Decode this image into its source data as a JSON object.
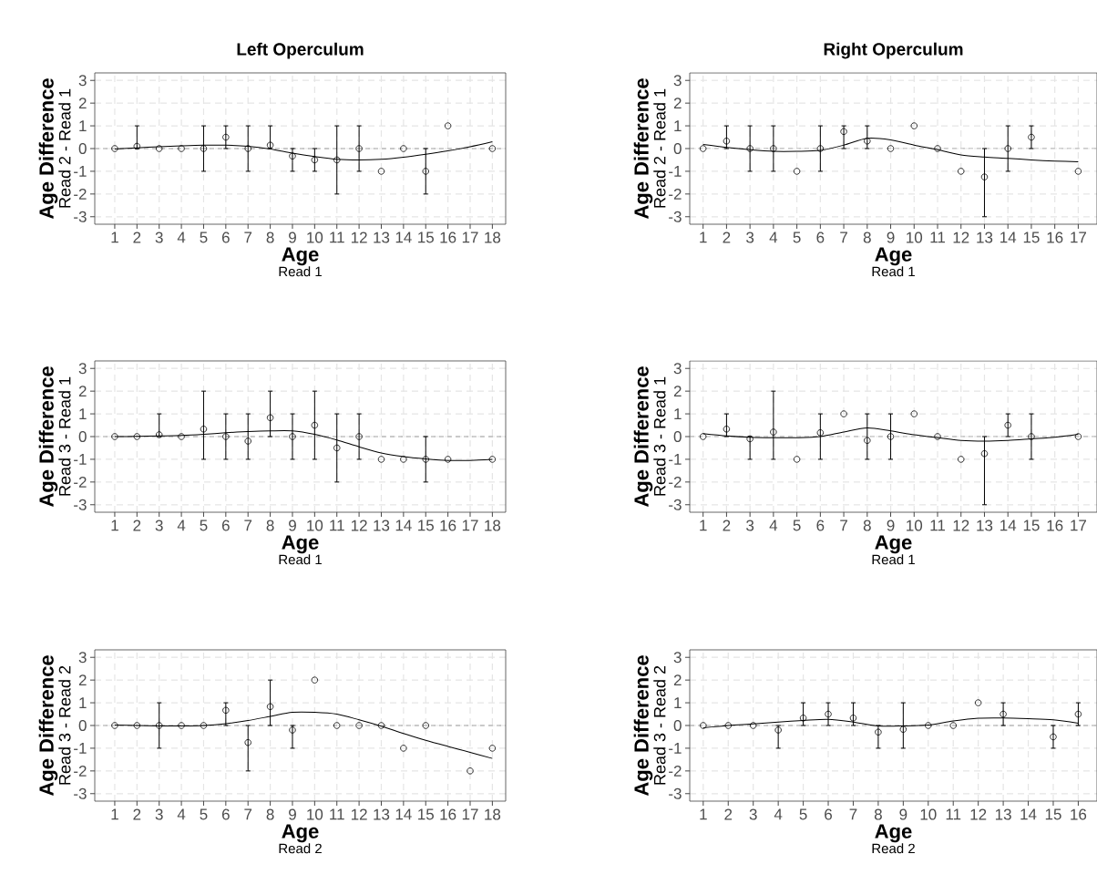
{
  "chart_data": [
    {
      "type": "scatter",
      "title": "Left Operculum",
      "xlabel": "Age",
      "ylabel": "Age Difference",
      "annotations": [
        "Read 1",
        "Read 2 - Read 1"
      ],
      "xlim": [
        0.1,
        18.6
      ],
      "xticks": [
        1,
        2,
        3,
        4,
        5,
        6,
        7,
        8,
        9,
        10,
        11,
        12,
        13,
        14,
        15,
        16,
        17,
        18
      ],
      "ylim": [
        -3.33,
        3.33
      ],
      "yticks": [
        -3,
        -2,
        -1,
        0,
        1,
        2,
        3
      ],
      "grid": true,
      "marker": "circle",
      "ref_lines": [
        {
          "axis": "y",
          "value": 0,
          "color": "#8c8c8c",
          "line_style": "dashed"
        }
      ],
      "series": [
        {
          "color": "#000000",
          "x": [
            1,
            2,
            3,
            4,
            5,
            6,
            7,
            8,
            9,
            10,
            11,
            12,
            13,
            14,
            15,
            16,
            18
          ],
          "values": [
            0,
            0.1,
            0,
            0,
            0,
            0.5,
            0,
            0.15,
            -0.33,
            -0.5,
            -0.5,
            0,
            -1,
            0,
            -1,
            1,
            0
          ],
          "errors": [
            null,
            [
              0,
              1
            ],
            null,
            null,
            [
              -1,
              1
            ],
            [
              0,
              1
            ],
            [
              -1,
              1
            ],
            [
              0,
              1
            ],
            [
              -1,
              0
            ],
            [
              -1,
              0
            ],
            [
              -2,
              1
            ],
            [
              -1,
              1
            ],
            null,
            null,
            [
              -2,
              0
            ],
            null,
            null
          ]
        },
        {
          "type": "line",
          "marker": "none",
          "color": "#000000",
          "x": [
            1,
            2,
            3,
            4,
            5,
            6,
            7,
            8,
            9,
            10,
            11,
            12,
            13,
            14,
            15,
            16,
            17,
            18
          ],
          "values": [
            -0.02,
            0.03,
            0.08,
            0.12,
            0.15,
            0.15,
            0.1,
            -0.02,
            -0.2,
            -0.35,
            -0.47,
            -0.5,
            -0.47,
            -0.38,
            -0.25,
            -0.1,
            0.08,
            0.3
          ]
        }
      ]
    },
    {
      "type": "scatter",
      "title": "Right Operculum",
      "xlabel": "Age",
      "ylabel": "Age Difference",
      "annotations": [
        "Read 1",
        "Read 2 - Read 1"
      ],
      "xlim": [
        0.43,
        17.8
      ],
      "xticks": [
        1,
        2,
        3,
        4,
        5,
        6,
        7,
        8,
        9,
        10,
        11,
        12,
        13,
        14,
        15,
        16,
        17
      ],
      "ylim": [
        -3.33,
        3.33
      ],
      "yticks": [
        -3,
        -2,
        -1,
        0,
        1,
        2,
        3
      ],
      "grid": true,
      "marker": "circle",
      "ref_lines": [
        {
          "axis": "y",
          "value": 0,
          "color": "#8c8c8c",
          "line_style": "dashed"
        }
      ],
      "series": [
        {
          "color": "#000000",
          "x": [
            1,
            2,
            3,
            4,
            5,
            6,
            7,
            8,
            9,
            10,
            11,
            12,
            13,
            14,
            15,
            17
          ],
          "values": [
            0,
            0.33,
            0,
            0,
            -1,
            0,
            0.75,
            0.33,
            0,
            1,
            0,
            -1,
            -1.25,
            0,
            0.5,
            -1
          ],
          "errors": [
            null,
            [
              0,
              1
            ],
            [
              -1,
              1
            ],
            [
              -1,
              1
            ],
            null,
            [
              -1,
              1
            ],
            [
              0,
              1
            ],
            [
              0,
              1
            ],
            null,
            null,
            null,
            null,
            [
              -3,
              0
            ],
            [
              -1,
              1
            ],
            [
              0,
              1
            ],
            null
          ]
        },
        {
          "type": "line",
          "marker": "none",
          "color": "#000000",
          "x": [
            1,
            2,
            3,
            4,
            5,
            6,
            7,
            8,
            9,
            10,
            11,
            12,
            13,
            14,
            15,
            16,
            17
          ],
          "values": [
            0.18,
            0.05,
            -0.05,
            -0.12,
            -0.12,
            -0.08,
            0.15,
            0.45,
            0.38,
            0.15,
            -0.05,
            -0.28,
            -0.37,
            -0.43,
            -0.5,
            -0.55,
            -0.58
          ]
        }
      ]
    },
    {
      "type": "scatter",
      "xlabel": "Age",
      "ylabel": "Age Difference",
      "annotations": [
        "Read 1",
        "Read 3 - Read 1"
      ],
      "xlim": [
        0.1,
        18.6
      ],
      "xticks": [
        1,
        2,
        3,
        4,
        5,
        6,
        7,
        8,
        9,
        10,
        11,
        12,
        13,
        14,
        15,
        16,
        17,
        18
      ],
      "ylim": [
        -3.33,
        3.33
      ],
      "yticks": [
        -3,
        -2,
        -1,
        0,
        1,
        2,
        3
      ],
      "grid": true,
      "marker": "circle",
      "ref_lines": [
        {
          "axis": "y",
          "value": 0,
          "color": "#8c8c8c",
          "line_style": "dashed"
        }
      ],
      "series": [
        {
          "color": "#000000",
          "x": [
            1,
            2,
            3,
            4,
            5,
            6,
            7,
            8,
            9,
            10,
            11,
            12,
            13,
            14,
            15,
            16,
            18
          ],
          "values": [
            0,
            0,
            0.08,
            0,
            0.33,
            0,
            -0.2,
            0.83,
            0,
            0.5,
            -0.5,
            0,
            -1,
            -1,
            -1,
            -1,
            -1
          ],
          "errors": [
            null,
            null,
            [
              0,
              1
            ],
            null,
            [
              -1,
              2
            ],
            [
              -1,
              1
            ],
            [
              -1,
              1
            ],
            [
              0,
              2
            ],
            [
              -1,
              1
            ],
            [
              -1,
              2
            ],
            [
              -2,
              1
            ],
            [
              -1,
              1
            ],
            null,
            null,
            [
              -2,
              0
            ],
            null,
            null
          ]
        },
        {
          "type": "line",
          "marker": "none",
          "color": "#000000",
          "x": [
            1,
            2,
            3,
            4,
            5,
            6,
            7,
            8,
            9,
            10,
            11,
            12,
            13,
            14,
            15,
            16,
            17,
            18
          ],
          "values": [
            0,
            0.01,
            0.03,
            0.05,
            0.1,
            0.17,
            0.22,
            0.25,
            0.25,
            0.1,
            -0.15,
            -0.45,
            -0.72,
            -0.88,
            -0.98,
            -1.05,
            -1.05,
            -1.0
          ]
        }
      ]
    },
    {
      "type": "scatter",
      "xlabel": "Age",
      "ylabel": "Age Difference",
      "annotations": [
        "Read 1",
        "Read 3 - Read 1"
      ],
      "xlim": [
        0.43,
        17.8
      ],
      "xticks": [
        1,
        2,
        3,
        4,
        5,
        6,
        7,
        8,
        9,
        10,
        11,
        12,
        13,
        14,
        15,
        16,
        17
      ],
      "ylim": [
        -3.33,
        3.33
      ],
      "yticks": [
        -3,
        -2,
        -1,
        0,
        1,
        2,
        3
      ],
      "grid": true,
      "marker": "circle",
      "ref_lines": [
        {
          "axis": "y",
          "value": 0,
          "color": "#8c8c8c",
          "line_style": "dashed"
        }
      ],
      "series": [
        {
          "color": "#000000",
          "x": [
            1,
            2,
            3,
            4,
            5,
            6,
            7,
            8,
            9,
            10,
            11,
            12,
            13,
            14,
            15,
            17
          ],
          "values": [
            0,
            0.33,
            -0.1,
            0.2,
            -1,
            0.17,
            1,
            -0.17,
            0,
            1,
            0,
            -1,
            -0.75,
            0.5,
            0,
            0
          ],
          "errors": [
            null,
            [
              0,
              1
            ],
            [
              -1,
              0
            ],
            [
              -1,
              2
            ],
            null,
            [
              -1,
              1
            ],
            null,
            [
              -1,
              1
            ],
            [
              -1,
              1
            ],
            null,
            null,
            null,
            [
              -3,
              0
            ],
            [
              0,
              1
            ],
            [
              -1,
              1
            ],
            null
          ]
        },
        {
          "type": "line",
          "marker": "none",
          "color": "#000000",
          "x": [
            1,
            2,
            3,
            4,
            5,
            6,
            7,
            8,
            9,
            10,
            11,
            12,
            13,
            14,
            15,
            16,
            17
          ],
          "values": [
            0.13,
            0.03,
            -0.03,
            -0.05,
            -0.05,
            0,
            0.2,
            0.38,
            0.25,
            0.08,
            -0.05,
            -0.17,
            -0.2,
            -0.17,
            -0.1,
            -0.03,
            0.1
          ]
        }
      ]
    },
    {
      "type": "scatter",
      "xlabel": "Age",
      "ylabel": "Age Difference",
      "annotations": [
        "Read 2",
        "Read 3 - Read 2"
      ],
      "xlim": [
        0.1,
        18.6
      ],
      "xticks": [
        1,
        2,
        3,
        4,
        5,
        6,
        7,
        8,
        9,
        10,
        11,
        12,
        13,
        14,
        15,
        16,
        17,
        18
      ],
      "ylim": [
        -3.33,
        3.33
      ],
      "yticks": [
        -3,
        -2,
        -1,
        0,
        1,
        2,
        3
      ],
      "grid": true,
      "marker": "circle",
      "ref_lines": [
        {
          "axis": "y",
          "value": 0,
          "color": "#8c8c8c",
          "line_style": "dashed"
        }
      ],
      "series": [
        {
          "color": "#000000",
          "x": [
            1,
            2,
            3,
            4,
            5,
            6,
            7,
            8,
            9,
            10,
            11,
            12,
            13,
            14,
            15,
            17,
            18
          ],
          "values": [
            0,
            0,
            0,
            0,
            0,
            0.67,
            -0.75,
            0.83,
            -0.2,
            2,
            0,
            0,
            0,
            -1,
            0,
            -2,
            -1
          ],
          "errors": [
            null,
            null,
            [
              -1,
              1
            ],
            null,
            null,
            [
              0,
              1
            ],
            [
              -2,
              0
            ],
            [
              0,
              2
            ],
            [
              -1,
              0
            ],
            null,
            null,
            null,
            null,
            null,
            null,
            null,
            null
          ]
        },
        {
          "type": "line",
          "marker": "none",
          "color": "#000000",
          "x": [
            1,
            2,
            3,
            4,
            5,
            6,
            7,
            8,
            9,
            10,
            11,
            12,
            13,
            14,
            15,
            16,
            17,
            18
          ],
          "values": [
            0.02,
            0,
            -0.02,
            -0.02,
            0,
            0.08,
            0.22,
            0.4,
            0.58,
            0.58,
            0.5,
            0.25,
            -0.03,
            -0.35,
            -0.65,
            -0.92,
            -1.18,
            -1.45
          ]
        }
      ]
    },
    {
      "type": "scatter",
      "xlabel": "Age",
      "ylabel": "Age Difference",
      "annotations": [
        "Read 2",
        "Read 3 - Read 2"
      ],
      "xlim": [
        0.46,
        16.75
      ],
      "xticks": [
        1,
        2,
        3,
        4,
        5,
        6,
        7,
        8,
        9,
        10,
        11,
        12,
        13,
        14,
        15,
        16
      ],
      "ylim": [
        -3.33,
        3.33
      ],
      "yticks": [
        -3,
        -2,
        -1,
        0,
        1,
        2,
        3
      ],
      "grid": true,
      "marker": "circle",
      "ref_lines": [
        {
          "axis": "y",
          "value": 0,
          "color": "#8c8c8c",
          "line_style": "dashed"
        }
      ],
      "series": [
        {
          "color": "#000000",
          "x": [
            1,
            2,
            3,
            4,
            5,
            6,
            7,
            8,
            9,
            10,
            11,
            12,
            13,
            15,
            16
          ],
          "values": [
            0,
            0,
            0,
            -0.2,
            0.33,
            0.5,
            0.33,
            -0.29,
            -0.17,
            0,
            0,
            1,
            0.5,
            -0.5,
            0.5
          ],
          "errors": [
            null,
            null,
            null,
            [
              -1,
              0
            ],
            [
              0,
              1
            ],
            [
              0,
              1
            ],
            [
              0,
              1
            ],
            [
              -1,
              0
            ],
            [
              -1,
              1
            ],
            null,
            null,
            null,
            [
              0,
              1
            ],
            [
              -1,
              0
            ],
            [
              0,
              1
            ]
          ]
        },
        {
          "type": "line",
          "marker": "none",
          "color": "#000000",
          "x": [
            1,
            2,
            3,
            4,
            5,
            6,
            7,
            8,
            9,
            10,
            11,
            12,
            13,
            14,
            15,
            16
          ],
          "values": [
            -0.1,
            0,
            0.07,
            0.15,
            0.22,
            0.27,
            0.15,
            -0.02,
            -0.02,
            0.02,
            0.2,
            0.32,
            0.33,
            0.3,
            0.25,
            0.1
          ]
        }
      ]
    }
  ]
}
